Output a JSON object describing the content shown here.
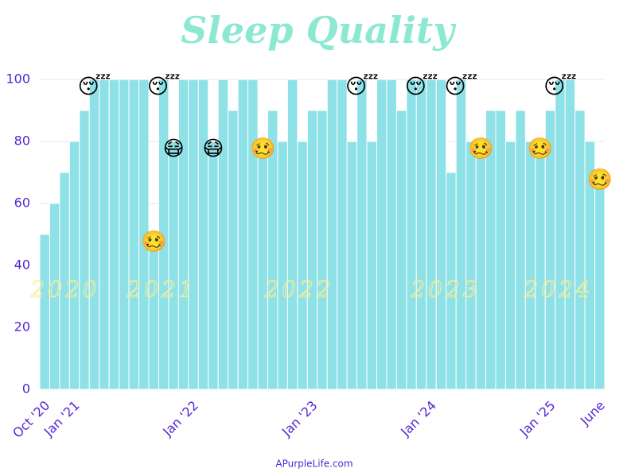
{
  "chart_data": {
    "type": "bar",
    "title": "Sleep Quality",
    "source": "APurpleLife.com",
    "color": "#8de1e7",
    "grid": true,
    "ylim": [
      0,
      100
    ],
    "yticks": [
      0,
      20,
      40,
      60,
      80,
      100
    ],
    "categories": [
      "Oct '20",
      null,
      null,
      "Jan '21",
      null,
      null,
      null,
      null,
      null,
      null,
      null,
      null,
      null,
      null,
      null,
      "Jan '22",
      null,
      null,
      null,
      null,
      null,
      null,
      null,
      null,
      null,
      null,
      null,
      "Jan '23",
      null,
      null,
      null,
      null,
      null,
      null,
      null,
      null,
      null,
      null,
      null,
      "Jan '24",
      null,
      null,
      null,
      null,
      null,
      null,
      null,
      null,
      null,
      null,
      null,
      "Jan '25",
      null,
      null,
      null,
      null,
      "June"
    ],
    "values": [
      50,
      60,
      70,
      80,
      90,
      100,
      100,
      100,
      100,
      100,
      100,
      50,
      100,
      80,
      100,
      100,
      100,
      80,
      100,
      90,
      100,
      100,
      80,
      90,
      80,
      100,
      80,
      90,
      90,
      100,
      100,
      80,
      100,
      80,
      100,
      100,
      90,
      100,
      100,
      100,
      100,
      70,
      100,
      80,
      80,
      90,
      90,
      80,
      90,
      80,
      80,
      90,
      100,
      100,
      90,
      80,
      70
    ],
    "markers": [
      null,
      null,
      null,
      null,
      null,
      "😴",
      null,
      null,
      null,
      null,
      null,
      "🥴",
      "😴",
      "😷",
      null,
      null,
      null,
      "😷",
      null,
      null,
      null,
      null,
      "🥴",
      null,
      null,
      null,
      null,
      null,
      null,
      null,
      null,
      null,
      "😴",
      null,
      null,
      null,
      null,
      null,
      "😴",
      null,
      null,
      null,
      "😴",
      null,
      "🥴",
      null,
      null,
      null,
      null,
      null,
      "🥴",
      null,
      "😴",
      null,
      null,
      null,
      "🥴"
    ],
    "annotations": [
      "2020",
      "2021",
      "2022",
      "2023",
      "2024"
    ]
  }
}
